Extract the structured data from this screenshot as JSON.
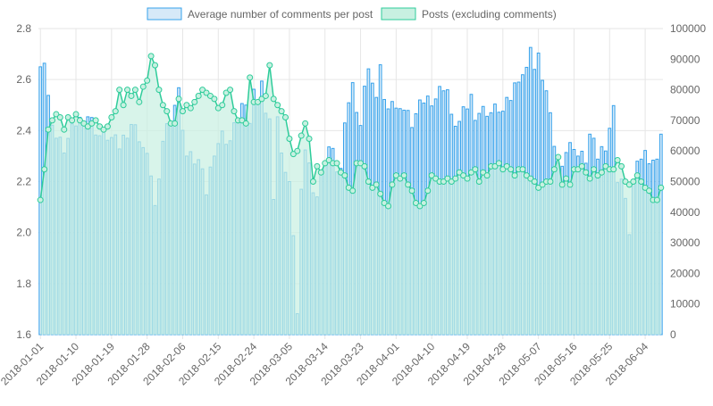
{
  "chart_data": {
    "type": "bar+line",
    "legend_position": "top",
    "grid": true,
    "series": [
      {
        "name": "Average number of comments per post",
        "type": "bar",
        "axis": "left",
        "color_border": "#36a2eb",
        "color_fill": "#d6e9f8"
      },
      {
        "name": "Posts (excluding comments)",
        "type": "area-line",
        "axis": "right",
        "color_border": "#2ecc9a",
        "color_fill": "#c8f0e1"
      }
    ],
    "start_date": "2018-01-01",
    "end_date": "2018-06-06",
    "x_tick_labels": [
      "2018-01-01",
      "2018-01-10",
      "2018-01-19",
      "2018-01-28",
      "2018-02-06",
      "2018-02-15",
      "2018-02-24",
      "2018-03-05",
      "2018-03-14",
      "2018-03-23",
      "2018-04-01",
      "2018-04-10",
      "2018-04-19",
      "2018-04-28",
      "2018-05-07",
      "2018-05-16",
      "2018-05-25",
      "2018-06-04"
    ],
    "y_left": {
      "min": 1.6,
      "max": 2.8,
      "ticks": [
        "1.6",
        "1.8",
        "2.0",
        "2.2",
        "2.4",
        "2.6",
        "2.8"
      ]
    },
    "y_right": {
      "min": 0,
      "max": 100000,
      "ticks": [
        "0",
        "10000",
        "20000",
        "30000",
        "40000",
        "50000",
        "60000",
        "70000",
        "80000",
        "90000",
        "100000"
      ]
    },
    "bar_anchor_values": [
      [
        0,
        2.68
      ],
      [
        1,
        2.67
      ],
      [
        3,
        2.52
      ],
      [
        5,
        2.37
      ],
      [
        8,
        2.33
      ],
      [
        12,
        2.43
      ],
      [
        15,
        2.46
      ],
      [
        19,
        2.38
      ],
      [
        22,
        2.38
      ],
      [
        26,
        2.34
      ],
      [
        30,
        2.43
      ],
      [
        33,
        2.38
      ],
      [
        36,
        2.24
      ],
      [
        37,
        2.21
      ],
      [
        38,
        2.1
      ],
      [
        39,
        2.18
      ],
      [
        40,
        2.37
      ],
      [
        45,
        2.55
      ],
      [
        48,
        2.3
      ],
      [
        52,
        2.28
      ],
      [
        54,
        2.22
      ],
      [
        55,
        2.16
      ],
      [
        57,
        2.33
      ],
      [
        60,
        2.38
      ],
      [
        62,
        2.36
      ],
      [
        66,
        2.5
      ],
      [
        69,
        2.44
      ],
      [
        70,
        2.55
      ],
      [
        71,
        2.56
      ],
      [
        72,
        2.55
      ],
      [
        73,
        2.6
      ],
      [
        74,
        2.45
      ],
      [
        75,
        2.47
      ],
      [
        76,
        2.33
      ],
      [
        77,
        2.13
      ],
      [
        78,
        2.43
      ],
      [
        80,
        2.41
      ],
      [
        81,
        2.23
      ],
      [
        82,
        2.17
      ],
      [
        83,
        2.0
      ],
      [
        84,
        1.67
      ],
      [
        85,
        1.84
      ],
      [
        86,
        2.2
      ],
      [
        87,
        2.33
      ],
      [
        90,
        2.18
      ],
      [
        91,
        2.14
      ],
      [
        93,
        2.28
      ],
      [
        95,
        2.33
      ],
      [
        96,
        2.3
      ],
      [
        97,
        2.25
      ],
      [
        98,
        2.24
      ],
      [
        100,
        2.46
      ],
      [
        102,
        2.53
      ],
      [
        103,
        2.57
      ],
      [
        105,
        2.42
      ],
      [
        106,
        2.55
      ],
      [
        108,
        2.66
      ],
      [
        110,
        2.5
      ],
      [
        111,
        2.67
      ],
      [
        113,
        2.51
      ],
      [
        115,
        2.52
      ],
      [
        117,
        2.47
      ],
      [
        118,
        2.51
      ],
      [
        120,
        2.48
      ],
      [
        122,
        2.43
      ],
      [
        126,
        2.52
      ],
      [
        130,
        2.53
      ],
      [
        132,
        2.58
      ],
      [
        133,
        2.56
      ],
      [
        135,
        2.44
      ],
      [
        138,
        2.43
      ],
      [
        141,
        2.53
      ],
      [
        143,
        2.47
      ],
      [
        146,
        2.48
      ],
      [
        148,
        2.47
      ],
      [
        150,
        2.49
      ],
      [
        152,
        2.47
      ],
      [
        155,
        2.53
      ],
      [
        157,
        2.62
      ],
      [
        160,
        2.63
      ],
      [
        161,
        2.75
      ],
      [
        162,
        2.64
      ],
      [
        164,
        2.68
      ],
      [
        166,
        2.55
      ],
      [
        167,
        2.44
      ],
      [
        170,
        2.26
      ],
      [
        172,
        2.32
      ],
      [
        175,
        2.35
      ],
      [
        177,
        2.3
      ],
      [
        179,
        2.29
      ],
      [
        180,
        2.38
      ],
      [
        183,
        2.3
      ],
      [
        185,
        2.35
      ],
      [
        188,
        2.48
      ],
      [
        189,
        2.54
      ],
      [
        190,
        2.22
      ],
      [
        191,
        2.21
      ],
      [
        193,
        2.01
      ],
      [
        194,
        2.03
      ],
      [
        195,
        2.2
      ],
      [
        197,
        2.3
      ],
      [
        199,
        2.31
      ],
      [
        201,
        2.29
      ],
      [
        202,
        2.28
      ],
      [
        203,
        2.27
      ],
      [
        204,
        2.41
      ]
    ],
    "line_anchor_values": [
      [
        0,
        44000
      ],
      [
        1,
        54000
      ],
      [
        2,
        67000
      ],
      [
        3,
        70000
      ],
      [
        4,
        72000
      ],
      [
        6,
        71000
      ],
      [
        7,
        67000
      ],
      [
        8,
        71000
      ],
      [
        9,
        70000
      ],
      [
        10,
        72000
      ],
      [
        11,
        70000
      ],
      [
        12,
        69000
      ],
      [
        13,
        66000
      ],
      [
        14,
        68000
      ],
      [
        15,
        69000
      ],
      [
        16,
        70000
      ],
      [
        17,
        68000
      ],
      [
        18,
        67000
      ],
      [
        19,
        68000
      ],
      [
        20,
        71000
      ],
      [
        21,
        73000
      ],
      [
        22,
        75000
      ],
      [
        23,
        80000
      ],
      [
        24,
        75000
      ],
      [
        25,
        80000
      ],
      [
        26,
        78000
      ],
      [
        27,
        80000
      ],
      [
        28,
        76000
      ],
      [
        29,
        81000
      ],
      [
        30,
        83000
      ],
      [
        31,
        84000
      ],
      [
        32,
        91000
      ],
      [
        33,
        88000
      ],
      [
        34,
        80000
      ],
      [
        35,
        75000
      ],
      [
        36,
        73000
      ],
      [
        37,
        69000
      ],
      [
        38,
        69000
      ],
      [
        39,
        77000
      ],
      [
        40,
        77000
      ],
      [
        41,
        73000
      ],
      [
        42,
        75000
      ],
      [
        43,
        74000
      ],
      [
        44,
        76000
      ],
      [
        45,
        78000
      ],
      [
        46,
        80000
      ],
      [
        47,
        79000
      ],
      [
        48,
        80000
      ],
      [
        49,
        78000
      ],
      [
        50,
        77000
      ],
      [
        51,
        74000
      ],
      [
        52,
        75000
      ],
      [
        53,
        79000
      ],
      [
        54,
        80000
      ],
      [
        55,
        73000
      ],
      [
        56,
        70000
      ],
      [
        57,
        70000
      ],
      [
        58,
        70000
      ],
      [
        59,
        69000
      ],
      [
        60,
        84000
      ],
      [
        61,
        76000
      ],
      [
        62,
        76000
      ],
      [
        63,
        77000
      ],
      [
        64,
        78000
      ],
      [
        65,
        88000
      ],
      [
        66,
        88000
      ],
      [
        67,
        77000
      ],
      [
        68,
        75000
      ],
      [
        69,
        73000
      ],
      [
        70,
        71000
      ],
      [
        71,
        64000
      ],
      [
        72,
        59000
      ],
      [
        73,
        60000
      ],
      [
        74,
        65000
      ],
      [
        75,
        70000
      ],
      [
        76,
        69000
      ],
      [
        77,
        64000
      ],
      [
        78,
        50000
      ],
      [
        79,
        55000
      ],
      [
        80,
        53000
      ],
      [
        81,
        56000
      ],
      [
        82,
        57000
      ],
      [
        83,
        56000
      ],
      [
        84,
        58000
      ],
      [
        85,
        56000
      ],
      [
        86,
        53000
      ],
      [
        87,
        52000
      ],
      [
        88,
        48000
      ],
      [
        89,
        47000
      ],
      [
        90,
        56000
      ],
      [
        91,
        56000
      ],
      [
        92,
        55000
      ],
      [
        93,
        52000
      ],
      [
        94,
        50000
      ],
      [
        95,
        48000
      ],
      [
        96,
        49000
      ],
      [
        97,
        46000
      ],
      [
        98,
        43000
      ],
      [
        99,
        42000
      ],
      [
        100,
        49000
      ],
      [
        101,
        52000
      ],
      [
        102,
        50000
      ],
      [
        103,
        51000
      ],
      [
        104,
        52000
      ],
      [
        105,
        49000
      ],
      [
        106,
        47000
      ],
      [
        107,
        43000
      ],
      [
        108,
        42000
      ],
      [
        109,
        43000
      ],
      [
        110,
        47000
      ],
      [
        111,
        48000
      ],
      [
        112,
        52000
      ],
      [
        113,
        51000
      ],
      [
        114,
        50000
      ],
      [
        115,
        50000
      ],
      [
        116,
        51000
      ],
      [
        117,
        50000
      ],
      [
        118,
        51000
      ],
      [
        119,
        53000
      ],
      [
        120,
        53000
      ],
      [
        121,
        52000
      ],
      [
        122,
        51000
      ],
      [
        123,
        53000
      ],
      [
        124,
        54000
      ],
      [
        125,
        50000
      ],
      [
        126,
        53000
      ],
      [
        127,
        52000
      ],
      [
        128,
        55000
      ],
      [
        129,
        54000
      ],
      [
        130,
        55000
      ],
      [
        131,
        56000
      ],
      [
        132,
        54000
      ],
      [
        133,
        55000
      ],
      [
        134,
        54000
      ],
      [
        135,
        52000
      ],
      [
        136,
        54000
      ],
      [
        137,
        55000
      ],
      [
        138,
        54000
      ],
      [
        139,
        52000
      ],
      [
        140,
        51000
      ],
      [
        141,
        50000
      ],
      [
        142,
        48000
      ],
      [
        143,
        49000
      ],
      [
        144,
        50000
      ],
      [
        145,
        50000
      ],
      [
        146,
        52000
      ],
      [
        147,
        54000
      ],
      [
        148,
        58000
      ],
      [
        149,
        49000
      ],
      [
        150,
        51000
      ],
      [
        151,
        49000
      ],
      [
        152,
        54000
      ],
      [
        153,
        54000
      ],
      [
        154,
        55000
      ],
      [
        155,
        54000
      ],
      [
        156,
        53000
      ],
      [
        157,
        51000
      ],
      [
        158,
        54000
      ],
      [
        159,
        52000
      ],
      [
        160,
        53000
      ],
      [
        161,
        55000
      ],
      [
        162,
        54000
      ],
      [
        163,
        54000
      ],
      [
        164,
        52000
      ],
      [
        165,
        57000
      ],
      [
        166,
        55000
      ],
      [
        167,
        50000
      ],
      [
        168,
        49000
      ],
      [
        169,
        50000
      ],
      [
        170,
        52000
      ],
      [
        171,
        50000
      ],
      [
        172,
        48000
      ],
      [
        173,
        47000
      ],
      [
        174,
        47000
      ],
      [
        175,
        44000
      ],
      [
        176,
        44000
      ],
      [
        177,
        48000
      ]
    ]
  }
}
